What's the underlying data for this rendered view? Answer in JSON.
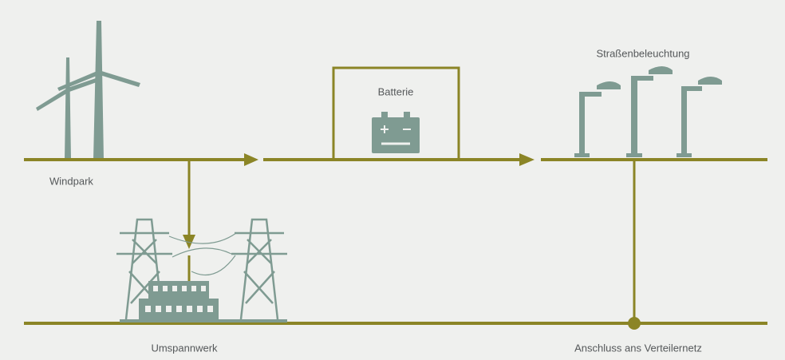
{
  "labels": {
    "wind_park": "Windpark",
    "battery": "Batterie",
    "street_lighting": "Straßenbeleuchtung",
    "substation": "Umspannwerk",
    "grid_connection": "Anschluss ans Verteilernetz"
  }
}
